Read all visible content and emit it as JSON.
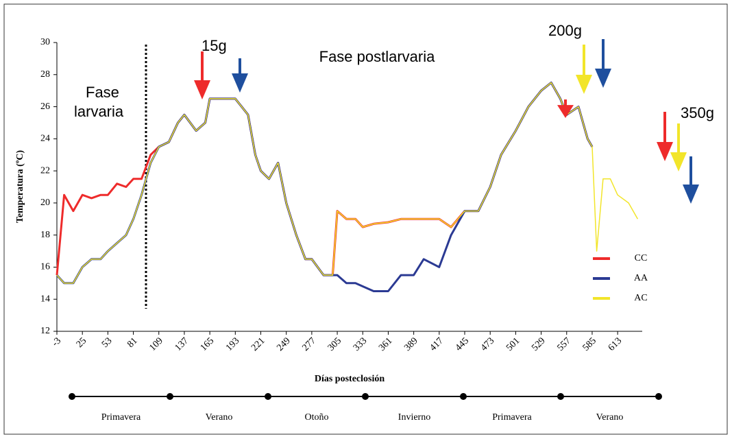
{
  "chart_data": {
    "type": "line",
    "ylabel": "Temperatura (ºC)",
    "xlabel": "Días posteclosión",
    "annotations": {
      "phase_post": "Fase postlarvaria",
      "phase_larval_1": "Fase",
      "phase_larval_2": "larvaria",
      "w15": "15g",
      "w200": "200g",
      "w350": "350g"
    },
    "seasons": [
      "Primavera",
      "Verano",
      "Otoño",
      "Invierno",
      "Primavera",
      "Verano"
    ],
    "xlim": [
      -3,
      640
    ],
    "ylim": [
      12,
      30
    ],
    "xticks": [
      -3,
      25,
      53,
      81,
      109,
      137,
      165,
      193,
      221,
      249,
      277,
      305,
      333,
      361,
      389,
      417,
      445,
      473,
      501,
      529,
      557,
      585,
      613
    ],
    "yticks": [
      12,
      14,
      16,
      18,
      20,
      22,
      24,
      26,
      28,
      30
    ],
    "legend": "lower right",
    "x": [
      -3,
      5,
      15,
      25,
      35,
      45,
      53,
      63,
      73,
      81,
      90,
      100,
      109,
      120,
      130,
      137,
      150,
      160,
      165,
      175,
      185,
      193,
      200,
      207,
      215,
      221,
      230,
      240,
      249,
      260,
      270,
      277,
      290,
      300,
      305,
      315,
      325,
      333,
      345,
      361,
      375,
      389,
      400,
      417,
      430,
      445,
      460,
      473,
      485,
      501,
      515,
      529,
      540,
      550,
      557,
      570,
      580,
      585,
      590,
      597,
      605,
      613,
      625,
      635
    ],
    "series": [
      {
        "name": "CC",
        "color": "#ee2b2b",
        "values": [
          15.5,
          20.5,
          19.5,
          20.5,
          20.3,
          20.5,
          20.5,
          21.2,
          21,
          21.5,
          21.5,
          23,
          23.5,
          23.8,
          25,
          25.5,
          24.5,
          25,
          26.5,
          26.5,
          26.5,
          26.5,
          26,
          25.5,
          23,
          22,
          21.5,
          22.5,
          20,
          18,
          16.5,
          16.5,
          15.5,
          15.5,
          19.5,
          19,
          19,
          18.5,
          18.7,
          18.8,
          19,
          19,
          19,
          19,
          18.5,
          19.5,
          19.5,
          21,
          23,
          24.5,
          26,
          27,
          27.5,
          26.5,
          25.5,
          26,
          24,
          23.5,
          null,
          null,
          null,
          null,
          null,
          null
        ]
      },
      {
        "name": "AA",
        "color": "#2b3a93",
        "values": [
          15.5,
          15,
          15,
          16,
          16.5,
          16.5,
          17,
          17.5,
          18,
          19,
          20.5,
          22.5,
          23.5,
          23.8,
          25,
          25.5,
          24.5,
          25,
          26.5,
          26.5,
          26.5,
          26.5,
          26,
          25.5,
          23,
          22,
          21.5,
          22.5,
          20,
          18,
          16.5,
          16.5,
          15.5,
          15.5,
          15.5,
          15,
          15,
          14.8,
          14.5,
          14.5,
          15.5,
          15.5,
          16.5,
          16,
          18,
          19.5,
          19.5,
          21,
          23,
          24.5,
          26,
          27,
          27.5,
          26.5,
          25.5,
          26,
          24,
          23.5,
          null,
          null,
          null,
          null,
          null,
          null
        ]
      },
      {
        "name": "AC",
        "color": "#f2e52a",
        "values": [
          15.5,
          15,
          15,
          16,
          16.5,
          16.5,
          17,
          17.5,
          18,
          19,
          20.5,
          22.5,
          23.5,
          23.8,
          25,
          25.5,
          24.5,
          25,
          26.5,
          26.5,
          26.5,
          26.5,
          26,
          25.5,
          23,
          22,
          21.5,
          22.5,
          20,
          18,
          16.5,
          16.5,
          15.5,
          15.5,
          19.5,
          19,
          19,
          18.5,
          18.7,
          18.8,
          19,
          19,
          19,
          19,
          18.5,
          19.5,
          19.5,
          21,
          23,
          24.5,
          26,
          27,
          27.5,
          26.5,
          25.5,
          26,
          24,
          23.5,
          17,
          21.5,
          21.5,
          20.5,
          20,
          19
        ]
      }
    ]
  }
}
